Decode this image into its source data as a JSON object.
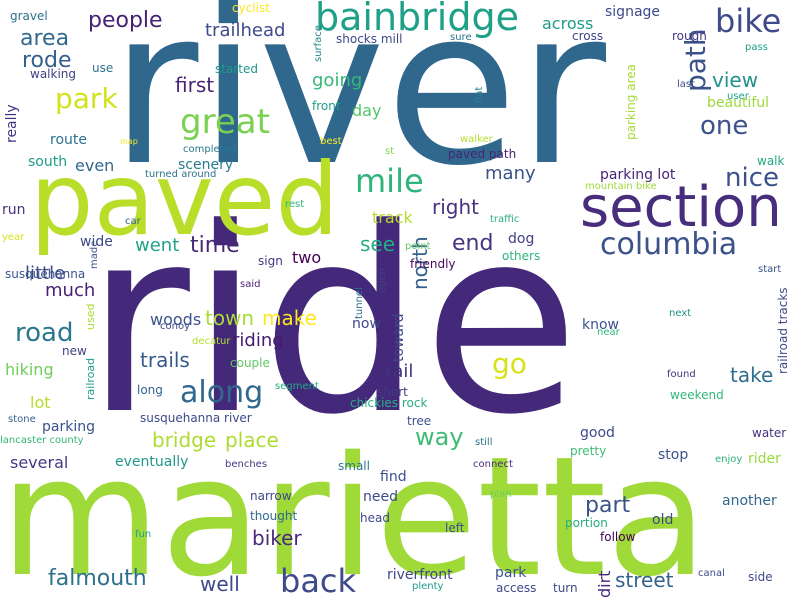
{
  "colors": {
    "background": "#ffffff",
    "palette": [
      "#30678d",
      "#44287a",
      "#b8de29",
      "#a0da39",
      "#1fa187",
      "#33b679",
      "#2a788e",
      "#20928c",
      "#472d7b",
      "#fde725",
      "#48186a",
      "#26828e",
      "#3fbc73"
    ]
  },
  "words": [
    {
      "text": "river",
      "color": "#30678d",
      "orientation": "horizontal"
    },
    {
      "text": "ride",
      "color": "#44287a",
      "orientation": "horizontal"
    },
    {
      "text": "marietta",
      "color": "#a0da39",
      "orientation": "horizontal"
    },
    {
      "text": "paved",
      "color": "#b8de29",
      "orientation": "horizontal"
    },
    {
      "text": "section",
      "color": "#472d7b",
      "orientation": "horizontal"
    },
    {
      "text": "bainbridge",
      "color": "#1fa187",
      "orientation": "horizontal"
    },
    {
      "text": "columbia",
      "color": "#3b528b",
      "orientation": "horizontal"
    },
    {
      "text": "bike",
      "color": "#3e4a89",
      "orientation": "horizontal"
    },
    {
      "text": "great",
      "color": "#7ad151",
      "orientation": "horizontal"
    },
    {
      "text": "mile",
      "color": "#2fb47c",
      "orientation": "horizontal"
    },
    {
      "text": "nice",
      "color": "#3b528b",
      "orientation": "horizontal"
    },
    {
      "text": "path",
      "color": "#3b528b",
      "orientation": "vertical"
    },
    {
      "text": "one",
      "color": "#3b528b",
      "orientation": "horizontal"
    },
    {
      "text": "view",
      "color": "#21918c",
      "orientation": "horizontal"
    },
    {
      "text": "along",
      "color": "#31688e",
      "orientation": "horizontal"
    },
    {
      "text": "road",
      "color": "#2a788e",
      "orientation": "horizontal"
    },
    {
      "text": "way",
      "color": "#3fbc73",
      "orientation": "horizontal"
    },
    {
      "text": "back",
      "color": "#3e4a89",
      "orientation": "horizontal"
    },
    {
      "text": "time",
      "color": "#482878",
      "orientation": "horizontal"
    },
    {
      "text": "right",
      "color": "#46327e",
      "orientation": "horizontal"
    },
    {
      "text": "park",
      "color": "#d2e21b",
      "orientation": "horizontal"
    },
    {
      "text": "people",
      "color": "#482173",
      "orientation": "horizontal"
    },
    {
      "text": "area",
      "color": "#31688e",
      "orientation": "horizontal"
    },
    {
      "text": "rode",
      "color": "#355f8d",
      "orientation": "horizontal"
    },
    {
      "text": "first",
      "color": "#482475",
      "orientation": "horizontal"
    },
    {
      "text": "trailhead",
      "color": "#3e4a89",
      "orientation": "horizontal"
    },
    {
      "text": "end",
      "color": "#46337f",
      "orientation": "horizontal"
    },
    {
      "text": "see",
      "color": "#25ac82",
      "orientation": "horizontal"
    },
    {
      "text": "north",
      "color": "#34618d",
      "orientation": "vertical"
    },
    {
      "text": "go",
      "color": "#d8e219",
      "orientation": "horizontal"
    },
    {
      "text": "rail",
      "color": "#45337d",
      "orientation": "horizontal"
    },
    {
      "text": "part",
      "color": "#3b528b",
      "orientation": "horizontal"
    },
    {
      "text": "falmouth",
      "color": "#2d708e",
      "orientation": "horizontal"
    },
    {
      "text": "street",
      "color": "#33638d",
      "orientation": "horizontal"
    },
    {
      "text": "biker",
      "color": "#472a7a",
      "orientation": "horizontal"
    },
    {
      "text": "well",
      "color": "#3e4989",
      "orientation": "horizontal"
    },
    {
      "text": "bridge",
      "color": "#addc30",
      "orientation": "horizontal"
    },
    {
      "text": "place",
      "color": "#addc30",
      "orientation": "horizontal"
    },
    {
      "text": "town",
      "color": "#a8db34",
      "orientation": "horizontal"
    },
    {
      "text": "make",
      "color": "#fde725",
      "orientation": "horizontal"
    },
    {
      "text": "trails",
      "color": "#38598c",
      "orientation": "horizontal"
    },
    {
      "text": "riding",
      "color": "#481b6d",
      "orientation": "horizontal"
    },
    {
      "text": "take",
      "color": "#2e6e8e",
      "orientation": "horizontal"
    },
    {
      "text": "went",
      "color": "#20a386",
      "orientation": "horizontal"
    },
    {
      "text": "two",
      "color": "#440154",
      "orientation": "horizontal"
    },
    {
      "text": "going",
      "color": "#35b779",
      "orientation": "horizontal"
    },
    {
      "text": "day",
      "color": "#52c569",
      "orientation": "horizontal"
    },
    {
      "text": "many",
      "color": "#3b528b",
      "orientation": "horizontal"
    },
    {
      "text": "track",
      "color": "#b5de2b",
      "orientation": "horizontal"
    },
    {
      "text": "dog",
      "color": "#423f85",
      "orientation": "horizontal"
    },
    {
      "text": "little",
      "color": "#3e4989",
      "orientation": "horizontal"
    },
    {
      "text": "much",
      "color": "#482173",
      "orientation": "horizontal"
    },
    {
      "text": "even",
      "color": "#30678d",
      "orientation": "horizontal"
    },
    {
      "text": "scenery",
      "color": "#287c8e",
      "orientation": "horizontal"
    },
    {
      "text": "run",
      "color": "#46327e",
      "orientation": "horizontal"
    },
    {
      "text": "wide",
      "color": "#3f4889",
      "orientation": "horizontal"
    },
    {
      "text": "woods",
      "color": "#3b528b",
      "orientation": "horizontal"
    },
    {
      "text": "lot",
      "color": "#b5de2b",
      "orientation": "horizontal"
    },
    {
      "text": "hiking",
      "color": "#6ece58",
      "orientation": "horizontal"
    },
    {
      "text": "parking",
      "color": "#3b528b",
      "orientation": "horizontal"
    },
    {
      "text": "several",
      "color": "#453882",
      "orientation": "horizontal"
    },
    {
      "text": "eventually",
      "color": "#1f988b",
      "orientation": "horizontal"
    },
    {
      "text": "really",
      "color": "#46337f",
      "orientation": "vertical"
    },
    {
      "text": "south",
      "color": "#1f9e89",
      "orientation": "horizontal"
    },
    {
      "text": "route",
      "color": "#2c728e",
      "orientation": "horizontal"
    },
    {
      "text": "walking",
      "color": "#424086",
      "orientation": "horizontal"
    },
    {
      "text": "gravel",
      "color": "#2d708e",
      "orientation": "horizontal"
    },
    {
      "text": "use",
      "color": "#2c738e",
      "orientation": "horizontal"
    },
    {
      "text": "started",
      "color": "#1f9a8a",
      "orientation": "horizontal"
    },
    {
      "text": "cyclist",
      "color": "#fde725",
      "orientation": "horizontal"
    },
    {
      "text": "completed",
      "color": "#2a788e",
      "orientation": "horizontal"
    },
    {
      "text": "turned around",
      "color": "#2c728e",
      "orientation": "horizontal"
    },
    {
      "text": "shocks mill",
      "color": "#3e4989",
      "orientation": "horizontal"
    },
    {
      "text": "across",
      "color": "#1f9a8a",
      "orientation": "horizontal"
    },
    {
      "text": "signage",
      "color": "#3e4a89",
      "orientation": "horizontal"
    },
    {
      "text": "rough",
      "color": "#453882",
      "orientation": "horizontal"
    },
    {
      "text": "cross",
      "color": "#404688",
      "orientation": "horizontal"
    },
    {
      "text": "sure",
      "color": "#2c728e",
      "orientation": "horizontal"
    },
    {
      "text": "surface",
      "color": "#25848e",
      "orientation": "vertical"
    },
    {
      "text": "front",
      "color": "#1f9e89",
      "orientation": "horizontal"
    },
    {
      "text": "best",
      "color": "#fde725",
      "orientation": "horizontal"
    },
    {
      "text": "st",
      "color": "#7fd34e",
      "orientation": "horizontal"
    },
    {
      "text": "walker",
      "color": "#b5de2b",
      "orientation": "horizontal"
    },
    {
      "text": "paved path",
      "color": "#482475",
      "orientation": "horizontal"
    },
    {
      "text": "flat",
      "color": "#25848e",
      "orientation": "vertical"
    },
    {
      "text": "parking area",
      "color": "#a5db36",
      "orientation": "vertical"
    },
    {
      "text": "pass",
      "color": "#1fa187",
      "orientation": "horizontal"
    },
    {
      "text": "last",
      "color": "#3d4d8a",
      "orientation": "horizontal"
    },
    {
      "text": "user",
      "color": "#1fa088",
      "orientation": "horizontal"
    },
    {
      "text": "beautiful",
      "color": "#9bd93c",
      "orientation": "horizontal"
    },
    {
      "text": "walk",
      "color": "#22a884",
      "orientation": "horizontal"
    },
    {
      "text": "parking lot",
      "color": "#482475",
      "orientation": "horizontal"
    },
    {
      "text": "mountain bike",
      "color": "#9fda3a",
      "orientation": "horizontal"
    },
    {
      "text": "traffic",
      "color": "#27ad81",
      "orientation": "horizontal"
    },
    {
      "text": "rest",
      "color": "#2db27d",
      "orientation": "horizontal"
    },
    {
      "text": "car",
      "color": "#33638d",
      "orientation": "horizontal"
    },
    {
      "text": "year",
      "color": "#d5e21a",
      "orientation": "horizontal"
    },
    {
      "text": "made",
      "color": "#3b528b",
      "orientation": "vertical"
    },
    {
      "text": "sign",
      "color": "#453781",
      "orientation": "horizontal"
    },
    {
      "text": "point",
      "color": "#63cb5f",
      "orientation": "horizontal"
    },
    {
      "text": "friendly",
      "color": "#46085c",
      "orientation": "horizontal"
    },
    {
      "text": "others",
      "color": "#2fb47c",
      "orientation": "horizontal"
    },
    {
      "text": "start",
      "color": "#39558c",
      "orientation": "horizontal"
    },
    {
      "text": "susquehanna",
      "color": "#3a548c",
      "orientation": "horizontal"
    },
    {
      "text": "used",
      "color": "#addc30",
      "orientation": "vertical"
    },
    {
      "text": "said",
      "color": "#482677",
      "orientation": "horizontal"
    },
    {
      "text": "open",
      "color": "#424186",
      "orientation": "vertical"
    },
    {
      "text": "tunnel",
      "color": "#2d708e",
      "orientation": "vertical"
    },
    {
      "text": "now",
      "color": "#404688",
      "orientation": "horizontal"
    },
    {
      "text": "toward",
      "color": "#3e4989",
      "orientation": "vertical"
    },
    {
      "text": "near",
      "color": "#2fb47c",
      "orientation": "horizontal"
    },
    {
      "text": "next",
      "color": "#21918c",
      "orientation": "horizontal"
    },
    {
      "text": "know",
      "color": "#3b528b",
      "orientation": "horizontal"
    },
    {
      "text": "railroad tracks",
      "color": "#3e4989",
      "orientation": "vertical"
    },
    {
      "text": "conoy",
      "color": "#3f4788",
      "orientation": "horizontal"
    },
    {
      "text": "decatur",
      "color": "#b5de2b",
      "orientation": "horizontal"
    },
    {
      "text": "couple",
      "color": "#5ec962",
      "orientation": "horizontal"
    },
    {
      "text": "new",
      "color": "#424186",
      "orientation": "horizontal"
    },
    {
      "text": "railroad",
      "color": "#1f9e89",
      "orientation": "vertical"
    },
    {
      "text": "long",
      "color": "#33638d",
      "orientation": "horizontal"
    },
    {
      "text": "segment",
      "color": "#22a884",
      "orientation": "horizontal"
    },
    {
      "text": "short",
      "color": "#443a83",
      "orientation": "horizontal"
    },
    {
      "text": "chickies rock",
      "color": "#29af7f",
      "orientation": "horizontal"
    },
    {
      "text": "found",
      "color": "#46337f",
      "orientation": "horizontal"
    },
    {
      "text": "weekend",
      "color": "#35b779",
      "orientation": "horizontal"
    },
    {
      "text": "stone",
      "color": "#355f8d",
      "orientation": "horizontal"
    },
    {
      "text": "susquehanna river",
      "color": "#3e4989",
      "orientation": "horizontal"
    },
    {
      "text": "tree",
      "color": "#3b528b",
      "orientation": "horizontal"
    },
    {
      "text": "lancaster county",
      "color": "#34b679",
      "orientation": "horizontal"
    },
    {
      "text": "still",
      "color": "#2c728e",
      "orientation": "horizontal"
    },
    {
      "text": "good",
      "color": "#3e4989",
      "orientation": "horizontal"
    },
    {
      "text": "water",
      "color": "#46337f",
      "orientation": "horizontal"
    },
    {
      "text": "pretty",
      "color": "#3fbc73",
      "orientation": "horizontal"
    },
    {
      "text": "benches",
      "color": "#453882",
      "orientation": "horizontal"
    },
    {
      "text": "small",
      "color": "#2a778e",
      "orientation": "horizontal"
    },
    {
      "text": "connect",
      "color": "#472c7a",
      "orientation": "horizontal"
    },
    {
      "text": "stop",
      "color": "#3b528b",
      "orientation": "horizontal"
    },
    {
      "text": "enjoy",
      "color": "#2db27d",
      "orientation": "horizontal"
    },
    {
      "text": "rider",
      "color": "#9bd93c",
      "orientation": "horizontal"
    },
    {
      "text": "find",
      "color": "#3b528b",
      "orientation": "horizontal"
    },
    {
      "text": "need",
      "color": "#3e4a89",
      "orientation": "horizontal"
    },
    {
      "text": "narrow",
      "color": "#3e4989",
      "orientation": "horizontal"
    },
    {
      "text": "thought",
      "color": "#31688e",
      "orientation": "horizontal"
    },
    {
      "text": "head",
      "color": "#3e4989",
      "orientation": "horizontal"
    },
    {
      "text": "plan",
      "color": "#6ece58",
      "orientation": "horizontal"
    },
    {
      "text": "another",
      "color": "#31688e",
      "orientation": "horizontal"
    },
    {
      "text": "left",
      "color": "#3b528b",
      "orientation": "horizontal"
    },
    {
      "text": "follow",
      "color": "#440154",
      "orientation": "horizontal"
    },
    {
      "text": "portion",
      "color": "#27ad81",
      "orientation": "horizontal"
    },
    {
      "text": "old",
      "color": "#3e4989",
      "orientation": "horizontal"
    },
    {
      "text": "fun",
      "color": "#20a386",
      "orientation": "horizontal"
    },
    {
      "text": "riverfront",
      "color": "#3e4989",
      "orientation": "horizontal"
    },
    {
      "text": "park",
      "color": "#3b528b",
      "orientation": "horizontal"
    },
    {
      "text": "dirt",
      "color": "#482878",
      "orientation": "vertical"
    },
    {
      "text": "turn",
      "color": "#3e4989",
      "orientation": "horizontal"
    },
    {
      "text": "access",
      "color": "#3e4989",
      "orientation": "horizontal"
    },
    {
      "text": "plenty",
      "color": "#1f9a8a",
      "orientation": "horizontal"
    },
    {
      "text": "canal",
      "color": "#3e4989",
      "orientation": "horizontal"
    },
    {
      "text": "side",
      "color": "#3e4989",
      "orientation": "horizontal"
    },
    {
      "text": "map",
      "color": "#fde725",
      "orientation": "horizontal"
    }
  ]
}
